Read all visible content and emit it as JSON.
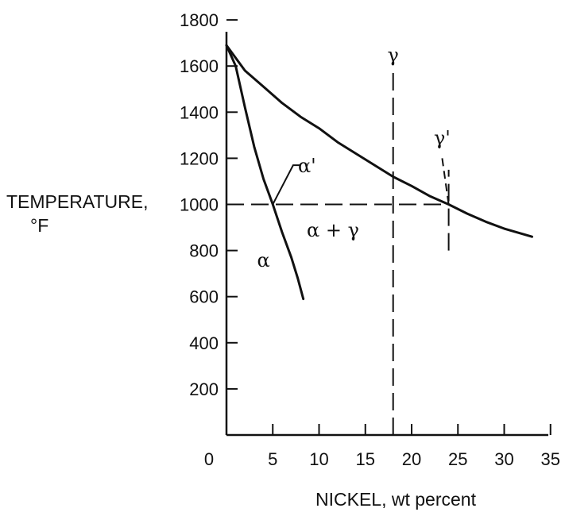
{
  "chart_data": {
    "type": "line",
    "xlabel": "NICKEL, wt percent",
    "ylabel_line1": "TEMPERATURE,",
    "ylabel_line2": "°F",
    "xlim": [
      0,
      35
    ],
    "ylim": [
      0,
      1800
    ],
    "xticks": [
      0,
      5,
      10,
      15,
      20,
      25,
      30,
      35
    ],
    "yticks": [
      200,
      400,
      600,
      800,
      1000,
      1200,
      1400,
      1600,
      1800
    ],
    "grid": false,
    "series": [
      {
        "points": [
          [
            0,
            1690
          ],
          [
            1,
            1600
          ],
          [
            2,
            1420
          ],
          [
            3,
            1250
          ],
          [
            4,
            1110
          ],
          [
            5,
            1000
          ],
          [
            6,
            880
          ],
          [
            7,
            770
          ],
          [
            7.7,
            680
          ],
          [
            8.3,
            590
          ]
        ]
      },
      {
        "points": [
          [
            0,
            1690
          ],
          [
            2,
            1580
          ],
          [
            4,
            1510
          ],
          [
            6,
            1440
          ],
          [
            8,
            1380
          ],
          [
            10,
            1330
          ],
          [
            12,
            1270
          ],
          [
            14,
            1220
          ],
          [
            16,
            1170
          ],
          [
            18,
            1120
          ],
          [
            20,
            1080
          ],
          [
            22,
            1035
          ],
          [
            24,
            1000
          ],
          [
            26,
            960
          ],
          [
            28,
            925
          ],
          [
            30,
            895
          ],
          [
            33,
            860
          ]
        ]
      }
    ],
    "reference_lines": [
      {
        "orientation": "horizontal",
        "y": 1000,
        "x_from": 0,
        "x_to": 24,
        "style": "dashed"
      },
      {
        "orientation": "vertical",
        "x": 18,
        "y_from": 0,
        "y_to": 1570,
        "style": "dashed"
      },
      {
        "orientation": "vertical",
        "x": 24,
        "y_from": 800,
        "y_to": 1150,
        "style": "dashed"
      }
    ],
    "annotations": [
      {
        "text": "α'",
        "x": 8.7,
        "y": 1140
      },
      {
        "text": "α + γ",
        "x": 11.5,
        "y": 860
      },
      {
        "text": "α",
        "x": 4,
        "y": 730
      },
      {
        "text": "γ",
        "x": 18,
        "y": 1620
      },
      {
        "text": "γ'",
        "x": 23.3,
        "y": 1260
      }
    ]
  }
}
